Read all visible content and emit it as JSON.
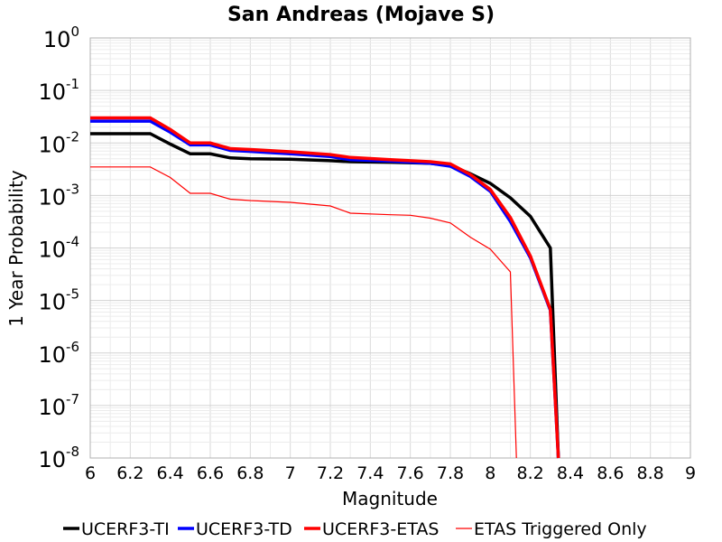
{
  "chart_data": {
    "type": "line",
    "title": "San Andreas (Mojave S)",
    "xlabel": "Magnitude",
    "ylabel": "1 Year Probability",
    "xlim": [
      6,
      9
    ],
    "ylim_log10": [
      -8,
      0
    ],
    "y_scale": "log",
    "grid": true,
    "legend_position": "bottom",
    "x_ticks": [
      "6",
      "6.2",
      "6.4",
      "6.6",
      "6.8",
      "7",
      "7.2",
      "7.4",
      "7.6",
      "7.8",
      "8",
      "8.2",
      "8.4",
      "8.6",
      "8.8",
      "9"
    ],
    "y_ticks": [
      {
        "base": "10",
        "exp": "0"
      },
      {
        "base": "10",
        "exp": "-1"
      },
      {
        "base": "10",
        "exp": "-2"
      },
      {
        "base": "10",
        "exp": "-3"
      },
      {
        "base": "10",
        "exp": "-4"
      },
      {
        "base": "10",
        "exp": "-5"
      },
      {
        "base": "10",
        "exp": "-6"
      },
      {
        "base": "10",
        "exp": "-7"
      },
      {
        "base": "10",
        "exp": "-8"
      }
    ],
    "series": [
      {
        "name": "UCERF3-TI",
        "color": "#000000",
        "x": [
          6.0,
          6.3,
          6.4,
          6.5,
          6.6,
          6.7,
          6.8,
          7.0,
          7.2,
          7.3,
          7.5,
          7.7,
          7.8,
          7.9,
          8.0,
          8.1,
          8.2,
          8.3,
          8.34
        ],
        "y": [
          0.015,
          0.015,
          0.0095,
          0.0062,
          0.0062,
          0.0052,
          0.005,
          0.0049,
          0.0046,
          0.0044,
          0.0043,
          0.0041,
          0.0037,
          0.0026,
          0.0017,
          0.0009,
          0.0004,
          0.0001,
          1e-08
        ]
      },
      {
        "name": "UCERF3-TD",
        "color": "#0000ff",
        "x": [
          6.0,
          6.3,
          6.4,
          6.5,
          6.6,
          6.7,
          6.8,
          7.0,
          7.2,
          7.3,
          7.5,
          7.7,
          7.8,
          7.9,
          8.0,
          8.1,
          8.2,
          8.3,
          8.34
        ],
        "y": [
          0.026,
          0.026,
          0.016,
          0.0092,
          0.0092,
          0.0072,
          0.0069,
          0.0062,
          0.0055,
          0.0048,
          0.0045,
          0.0041,
          0.0036,
          0.0023,
          0.0012,
          0.00032,
          6.5e-05,
          6.5e-06,
          1e-08
        ]
      },
      {
        "name": "UCERF3-ETAS",
        "color": "#ff0000",
        "x": [
          6.0,
          6.3,
          6.4,
          6.5,
          6.6,
          6.7,
          6.8,
          7.0,
          7.2,
          7.3,
          7.5,
          7.7,
          7.8,
          7.9,
          8.0,
          8.1,
          8.2,
          8.3,
          8.34
        ],
        "y": [
          0.03,
          0.03,
          0.018,
          0.01,
          0.01,
          0.0078,
          0.0075,
          0.0068,
          0.006,
          0.0053,
          0.0048,
          0.0044,
          0.004,
          0.0025,
          0.0013,
          0.00038,
          7e-05,
          6.8e-06,
          1e-08
        ]
      },
      {
        "name": "ETAS Triggered Only",
        "color": "#ff0000",
        "x": [
          6.0,
          6.3,
          6.4,
          6.5,
          6.6,
          6.7,
          6.8,
          7.0,
          7.2,
          7.3,
          7.5,
          7.6,
          7.7,
          7.8,
          7.9,
          8.0,
          8.1,
          8.13
        ],
        "y": [
          0.0035,
          0.0035,
          0.0022,
          0.0011,
          0.0011,
          0.00085,
          0.0008,
          0.00074,
          0.00063,
          0.00046,
          0.00043,
          0.00042,
          0.00037,
          0.0003,
          0.00016,
          9.5e-05,
          3.5e-05,
          1e-08
        ]
      }
    ]
  }
}
